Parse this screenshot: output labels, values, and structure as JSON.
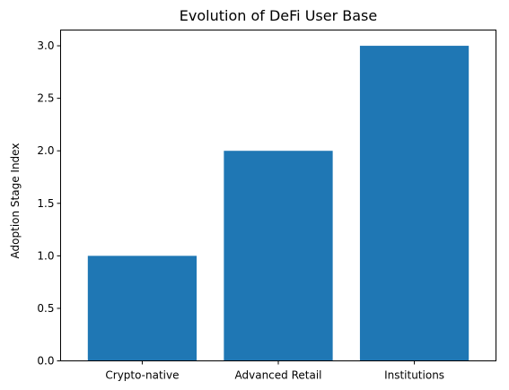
{
  "chart_data": {
    "type": "bar",
    "title": "Evolution of DeFi User Base",
    "xlabel": "",
    "ylabel": "Adoption Stage Index",
    "categories": [
      "Crypto-native",
      "Advanced Retail",
      "Institutions"
    ],
    "values": [
      1,
      2,
      3
    ],
    "ylim": [
      0,
      3.15
    ],
    "yticks": [
      "0.0",
      "0.5",
      "1.0",
      "1.5",
      "2.0",
      "2.5",
      "3.0"
    ],
    "grid": false,
    "bar_color": "#1f77b4"
  }
}
